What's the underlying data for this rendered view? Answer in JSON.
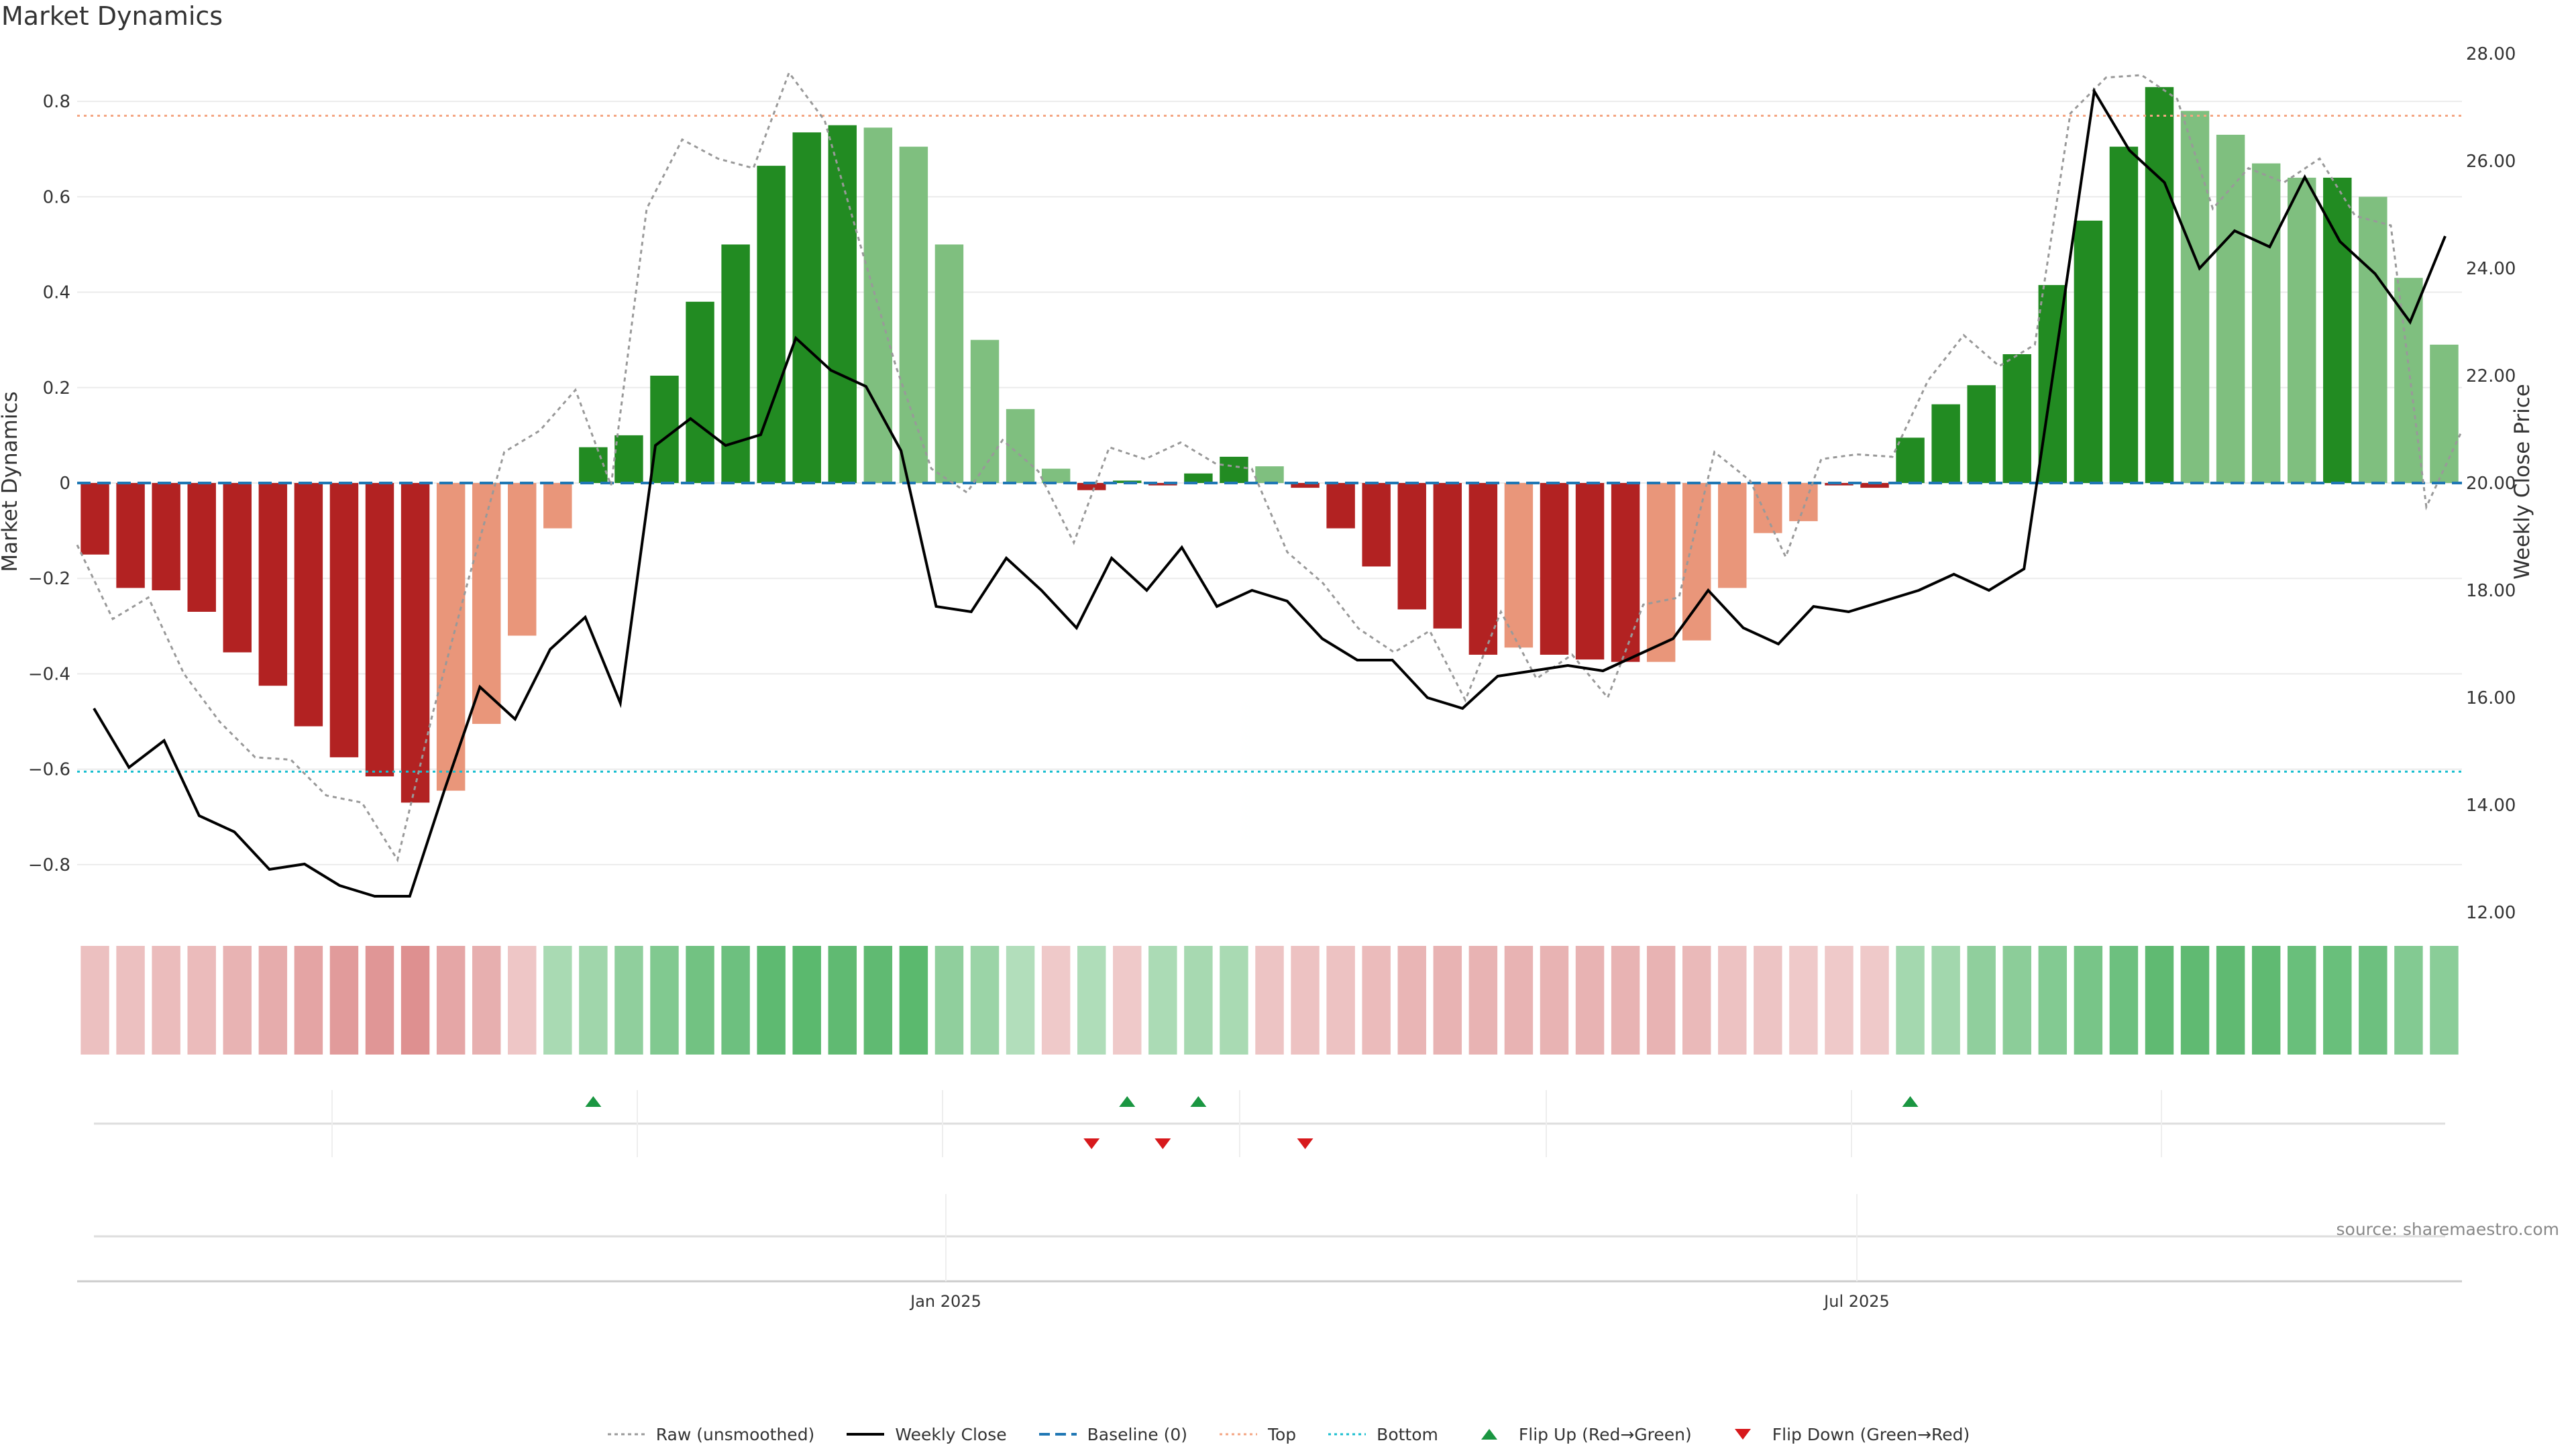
{
  "title": "Market Dynamics",
  "source": "source: sharemaestro.com",
  "colors": {
    "dark_red": "#b22222",
    "light_red": "#e9967a",
    "dark_green": "#228b22",
    "light_green": "#7fbf7f",
    "close_line": "#000000",
    "raw_line": "#999999",
    "baseline": "#1f77b4",
    "top": "#f4a582",
    "bottom": "#17becf",
    "flip_up": "#1a9641",
    "flip_down": "#d7191c"
  },
  "chart_data": {
    "type": "bar",
    "title": "Market Dynamics",
    "ylabel": "Market Dynamics",
    "y2label": "Weekly Close Price",
    "ylim": [
      -0.9,
      0.9
    ],
    "y2lim": [
      12.0,
      28.0
    ],
    "yticks": [
      "0.8",
      "0.6",
      "0.4",
      "0.2",
      "0",
      "−0.2",
      "−0.4",
      "−0.6",
      "−0.8"
    ],
    "y2ticks": [
      "28.00",
      "26.00",
      "24.00",
      "22.00",
      "20.00",
      "18.00",
      "16.00",
      "14.00",
      "12.00"
    ],
    "xticks": [
      "Jan 2025",
      "Jul 2025"
    ],
    "top_level": 0.77,
    "bottom_level": -0.605,
    "baseline_level": 0,
    "grid": true,
    "legend_placement": "bottom-center",
    "series": [
      {
        "name": "Market Dynamics (smoothed)",
        "values": [
          -0.15,
          -0.22,
          -0.225,
          -0.27,
          -0.355,
          -0.425,
          -0.51,
          -0.575,
          -0.615,
          -0.67,
          -0.645,
          -0.505,
          -0.32,
          -0.095,
          0.075,
          0.1,
          0.225,
          0.38,
          0.5,
          0.665,
          0.735,
          0.75,
          0.745,
          0.705,
          0.5,
          0.3,
          0.155,
          0.03,
          -0.015,
          0.005,
          -0.005,
          0.02,
          0.055,
          0.035,
          -0.01,
          -0.095,
          -0.175,
          -0.265,
          -0.305,
          -0.36,
          -0.345,
          -0.36,
          -0.37,
          -0.375,
          -0.375,
          -0.33,
          -0.22,
          -0.105,
          -0.08,
          -0.005,
          -0.01,
          0.095,
          0.165,
          0.205,
          0.27,
          0.415,
          0.55,
          0.705,
          0.83,
          0.78,
          0.73,
          0.67,
          0.64,
          0.64,
          0.6,
          0.43,
          0.29
        ],
        "color_class": [
          "dr",
          "dr",
          "dr",
          "dr",
          "dr",
          "dr",
          "dr",
          "dr",
          "dr",
          "dr",
          "lr",
          "lr",
          "lr",
          "lr",
          "dg",
          "dg",
          "dg",
          "dg",
          "dg",
          "dg",
          "dg",
          "dg",
          "lg",
          "lg",
          "lg",
          "lg",
          "lg",
          "lg",
          "dr",
          "dg",
          "dr",
          "dg",
          "dg",
          "lg",
          "dr",
          "dr",
          "dr",
          "dr",
          "dr",
          "dr",
          "lr",
          "dr",
          "dr",
          "dr",
          "lr",
          "lr",
          "lr",
          "lr",
          "lr",
          "dr",
          "dr",
          "dg",
          "dg",
          "dg",
          "dg",
          "dg",
          "dg",
          "dg",
          "dg",
          "lg",
          "lg",
          "lg",
          "lg",
          "dg",
          "lg",
          "lg",
          "lg"
        ]
      },
      {
        "name": "Raw (unsmoothed)",
        "values": [
          -0.13,
          -0.285,
          -0.24,
          -0.4,
          -0.5,
          -0.575,
          -0.58,
          -0.655,
          -0.67,
          -0.79,
          -0.48,
          -0.2,
          0.065,
          0.11,
          0.195,
          -0.005,
          0.575,
          0.72,
          0.68,
          0.66,
          0.86,
          0.76,
          0.5,
          0.245,
          0.03,
          -0.02,
          0.09,
          0.025,
          -0.125,
          0.075,
          0.05,
          0.085,
          0.04,
          0.03,
          -0.145,
          -0.21,
          -0.305,
          -0.355,
          -0.31,
          -0.455,
          -0.27,
          -0.41,
          -0.36,
          -0.45,
          -0.255,
          -0.24,
          0.065,
          0.005,
          -0.155,
          0.05,
          0.06,
          0.055,
          0.215,
          0.31,
          0.245,
          0.29,
          0.775,
          0.85,
          0.855,
          0.805,
          0.575,
          0.66,
          0.63,
          0.68,
          0.56,
          0.54,
          -0.05,
          0.11
        ]
      },
      {
        "name": "Weekly Close",
        "values": [
          15.8,
          14.7,
          15.2,
          13.8,
          13.5,
          12.8,
          12.9,
          12.5,
          12.3,
          12.3,
          14.3,
          16.2,
          15.6,
          16.9,
          17.5,
          15.9,
          20.7,
          21.2,
          20.7,
          20.9,
          22.7,
          22.1,
          21.8,
          20.6,
          17.7,
          17.6,
          18.6,
          18.0,
          17.3,
          18.6,
          18.0,
          18.8,
          17.7,
          18.0,
          17.8,
          17.1,
          16.7,
          16.7,
          16.0,
          15.8,
          16.4,
          16.5,
          16.6,
          16.5,
          16.8,
          17.1,
          18.0,
          17.3,
          17.0,
          17.7,
          17.6,
          17.8,
          18.0,
          18.3,
          18.0,
          18.4,
          22.8,
          27.3,
          26.2,
          25.6,
          24.0,
          24.7,
          24.4,
          25.7,
          24.5,
          23.9,
          23.0,
          24.6
        ]
      },
      {
        "name": "Baseline (0)",
        "values": [
          0
        ]
      },
      {
        "name": "Top",
        "values": [
          0.77
        ]
      },
      {
        "name": "Bottom",
        "values": [
          -0.605
        ]
      },
      {
        "name": "Flip Up (Red→Green)",
        "weeks": [
          14,
          29,
          31,
          51
        ]
      },
      {
        "name": "Flip Down (Green→Red)",
        "weeks": [
          28,
          30,
          34
        ]
      }
    ],
    "intensity_strip": [
      -0.24,
      -0.24,
      -0.26,
      -0.28,
      -0.35,
      -0.42,
      -0.49,
      -0.57,
      -0.61,
      -0.66,
      -0.47,
      -0.38,
      -0.19,
      0.22,
      0.28,
      0.39,
      0.49,
      0.6,
      0.63,
      0.74,
      0.75,
      0.73,
      0.72,
      0.75,
      0.39,
      0.31,
      0.16,
      -0.13,
      0.17,
      -0.1,
      0.2,
      0.23,
      0.21,
      -0.2,
      -0.21,
      -0.21,
      -0.29,
      -0.33,
      -0.35,
      -0.35,
      -0.35,
      -0.35,
      -0.35,
      -0.35,
      -0.35,
      -0.3,
      -0.21,
      -0.2,
      -0.13,
      -0.15,
      -0.14,
      0.24,
      0.26,
      0.38,
      0.42,
      0.47,
      0.55,
      0.63,
      0.72,
      0.72,
      0.72,
      0.72,
      0.66,
      0.66,
      0.63,
      0.47,
      0.43
    ]
  },
  "legend": [
    {
      "label": "Raw (unsmoothed)",
      "style": "raw"
    },
    {
      "label": "Weekly Close",
      "style": "close"
    },
    {
      "label": "Baseline (0)",
      "style": "baseline"
    },
    {
      "label": "Top",
      "style": "top"
    },
    {
      "label": "Bottom",
      "style": "bottom"
    },
    {
      "label": "Flip Up (Red→Green)",
      "style": "flip_up"
    },
    {
      "label": "Flip Down (Green→Red)",
      "style": "flip_down"
    }
  ]
}
